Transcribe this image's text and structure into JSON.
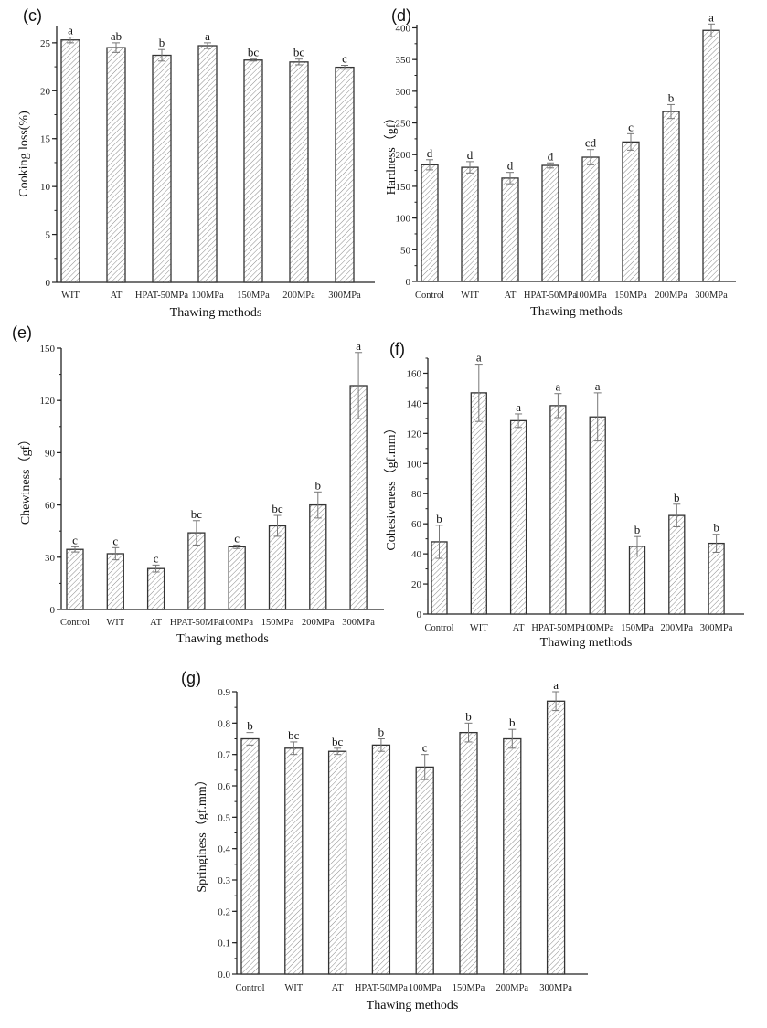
{
  "chart_data": [
    {
      "type": "bar",
      "panel_label": "(c)",
      "xlabel": "Thawing methods",
      "ylabel": "Cooking loss(%)",
      "categories": [
        "WIT",
        "AT",
        "HPAT-50MPa",
        "100MPa",
        "150MPa",
        "200MPa",
        "300MPa"
      ],
      "values": [
        25.3,
        24.5,
        23.7,
        24.7,
        23.2,
        23.0,
        22.45
      ],
      "errors": [
        0.3,
        0.5,
        0.6,
        0.3,
        0.1,
        0.3,
        0.2
      ],
      "letters": [
        "a",
        "ab",
        "b",
        "a",
        "bc",
        "bc",
        "c"
      ],
      "ylim": [
        0,
        26.8
      ],
      "yticks": [
        0,
        5,
        10,
        15,
        20,
        25
      ],
      "minor_tick_step": 2.5,
      "grid": false
    },
    {
      "type": "bar",
      "panel_label": "(d)",
      "xlabel": "Thawing methods",
      "ylabel": "Hardness（gf）",
      "categories": [
        "Control",
        "WIT",
        "AT",
        "HPAT-50MPa",
        "100MPa",
        "150MPa",
        "200MPa",
        "300MPa"
      ],
      "values": [
        184,
        180,
        163,
        183,
        196,
        220,
        268,
        396
      ],
      "errors": [
        8,
        9,
        9,
        4,
        12,
        13,
        11,
        10
      ],
      "letters": [
        "d",
        "d",
        "d",
        "d",
        "cd",
        "c",
        "b",
        "a"
      ],
      "ylim": [
        0,
        405
      ],
      "yticks": [
        0,
        50,
        100,
        150,
        200,
        250,
        300,
        350,
        400
      ],
      "minor_tick_step": 25,
      "grid": false
    },
    {
      "type": "bar",
      "panel_label": "(e)",
      "xlabel": "Thawing methods",
      "ylabel": "Chewiness（gf）",
      "categories": [
        "Control",
        "WIT",
        "AT",
        "HPAT-50MPa",
        "100MPa",
        "150MPa",
        "200MPa",
        "300MPa"
      ],
      "values": [
        34.5,
        32,
        23.5,
        44,
        36,
        48,
        60,
        128.5
      ],
      "errors": [
        1.5,
        3.5,
        2,
        7,
        1,
        6,
        7.5,
        19
      ],
      "letters": [
        "c",
        "c",
        "c",
        "bc",
        "c",
        "bc",
        "b",
        "a"
      ],
      "ylim": [
        0,
        150
      ],
      "yticks": [
        0,
        30,
        60,
        90,
        120,
        150
      ],
      "minor_tick_step": 15,
      "grid": false
    },
    {
      "type": "bar",
      "panel_label": "(f)",
      "xlabel": "Thawing methods",
      "ylabel": "Cohesiveness（gf.mm）",
      "categories": [
        "Control",
        "WIT",
        "AT",
        "HPAT-50MPa",
        "100MPa",
        "150MPa",
        "200MPa",
        "300MPa"
      ],
      "values": [
        48,
        147,
        128.5,
        138.5,
        131,
        45,
        65.5,
        47
      ],
      "errors": [
        11,
        19,
        4.5,
        8,
        16,
        6.5,
        7.5,
        6
      ],
      "letters": [
        "b",
        "a",
        "a",
        "a",
        "a",
        "b",
        "b",
        "b"
      ],
      "ylim": [
        0,
        170
      ],
      "yticks": [
        0,
        20,
        40,
        60,
        80,
        100,
        120,
        140,
        160
      ],
      "minor_tick_step": 10,
      "grid": false
    },
    {
      "type": "bar",
      "panel_label": "(g)",
      "xlabel": "Thawing methods",
      "ylabel": "Springiness（gf.mm）",
      "categories": [
        "Control",
        "WIT",
        "AT",
        "HPAT-50MPa",
        "100MPa",
        "150MPa",
        "200MPa",
        "300MPa"
      ],
      "values": [
        0.75,
        0.72,
        0.71,
        0.73,
        0.66,
        0.77,
        0.75,
        0.87
      ],
      "errors": [
        0.02,
        0.02,
        0.01,
        0.02,
        0.04,
        0.03,
        0.03,
        0.03
      ],
      "letters": [
        "b",
        "bc",
        "bc",
        "b",
        "c",
        "b",
        "b",
        "a"
      ],
      "ylim": [
        0,
        0.9
      ],
      "yticks": [
        "0.0",
        "0.1",
        "0.2",
        "0.3",
        "0.4",
        "0.5",
        "0.6",
        "0.7",
        "0.8",
        "0.9"
      ],
      "minor_tick_step": 0.05,
      "grid": false
    }
  ],
  "colors": {
    "bar_outline": "#333333",
    "hatch": "#8a8a8a",
    "error_bar": "#777777",
    "axis": "#222222"
  }
}
